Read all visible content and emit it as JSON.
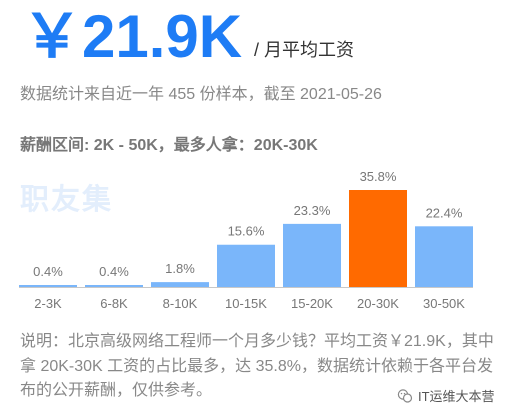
{
  "header": {
    "salary": "￥21.9K",
    "unit": "/ 月平均工资",
    "subtitle": "数据统计来自近一年 455 份样本，截至 2021-05-26",
    "range_text": "薪酬区间: 2K - 50K，最多人拿：20K-30K"
  },
  "watermark": "职友集",
  "chart_data": {
    "type": "bar",
    "categories": [
      "2-3K",
      "6-8K",
      "8-10K",
      "10-15K",
      "15-20K",
      "20-30K",
      "30-50K"
    ],
    "values": [
      0.4,
      0.4,
      1.8,
      15.6,
      23.3,
      35.8,
      22.4
    ],
    "value_labels": [
      "0.4%",
      "0.4%",
      "1.8%",
      "15.6%",
      "23.3%",
      "35.8%",
      "22.4%"
    ],
    "highlight_index": 5,
    "colors": {
      "bar": "#7ab6fa",
      "highlight": "#ff6a00",
      "axis": "#c8c8c8"
    },
    "grid": false
  },
  "note": "说明：北京高级网络工程师一个月多少钱？平均工资￥21.9K，其中拿 20K-30K 工资的占比最多，达 35.8%，数据统计依赖于各平台发布的公开薪酬，仅供参考。",
  "badge": {
    "icon": "wechat-icon",
    "text": "IT运维大本营"
  }
}
